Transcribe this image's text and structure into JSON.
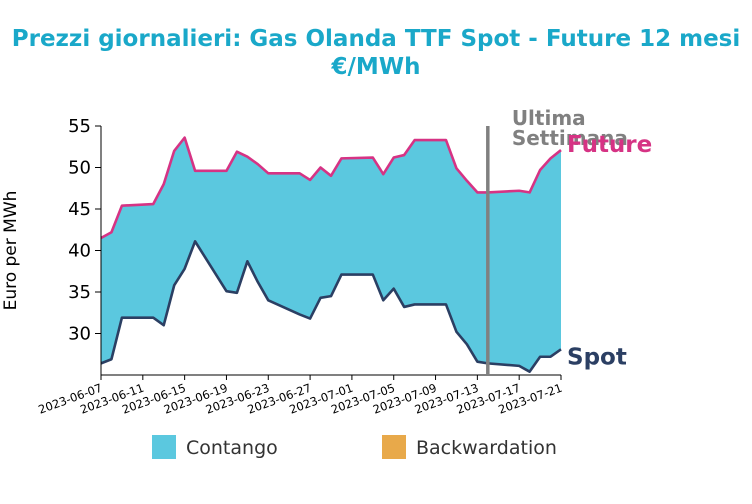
{
  "chart_data": {
    "type": "area",
    "title": "Prezzi giornalieri: Gas Olanda TTF Spot - Future 12 mesi",
    "subtitle": "€/MWh",
    "xlabel": "",
    "ylabel": "Euro per MWh",
    "ylim": [
      25,
      55
    ],
    "yticks": [
      30,
      35,
      40,
      45,
      50,
      55
    ],
    "x_ticks": [
      "2023-06-07",
      "2023-06-11",
      "2023-06-15",
      "2023-06-19",
      "2023-06-23",
      "2023-06-27",
      "2023-07-01",
      "2023-07-05",
      "2023-07-09",
      "2023-07-13",
      "2023-07-17",
      "2023-07-21"
    ],
    "dates": [
      "2023-06-07",
      "2023-06-08",
      "2023-06-09",
      "2023-06-12",
      "2023-06-13",
      "2023-06-14",
      "2023-06-15",
      "2023-06-16",
      "2023-06-19",
      "2023-06-20",
      "2023-06-21",
      "2023-06-22",
      "2023-06-23",
      "2023-06-26",
      "2023-06-27",
      "2023-06-28",
      "2023-06-29",
      "2023-06-30",
      "2023-07-03",
      "2023-07-04",
      "2023-07-05",
      "2023-07-06",
      "2023-07-07",
      "2023-07-10",
      "2023-07-11",
      "2023-07-12",
      "2023-07-13",
      "2023-07-14",
      "2023-07-17",
      "2023-07-18",
      "2023-07-19",
      "2023-07-20",
      "2023-07-21"
    ],
    "series": [
      {
        "name": "Future",
        "color": "#d63384",
        "values": [
          41.5,
          42.2,
          45.4,
          45.6,
          48.0,
          52.0,
          53.6,
          49.6,
          49.6,
          51.9,
          51.3,
          50.4,
          49.3,
          49.3,
          48.5,
          50.0,
          49.0,
          51.1,
          51.2,
          49.2,
          51.2,
          51.5,
          53.3,
          53.3,
          49.9,
          48.4,
          47.0,
          47.0,
          47.2,
          47.0,
          49.7,
          51.1,
          52.1
        ]
      },
      {
        "name": "Spot",
        "color": "#2b3f63",
        "values": [
          26.4,
          26.9,
          31.9,
          31.9,
          31.0,
          35.8,
          37.8,
          41.1,
          35.1,
          34.9,
          38.7,
          36.2,
          34.0,
          32.3,
          31.8,
          34.3,
          34.5,
          37.1,
          37.1,
          34.0,
          35.4,
          33.2,
          33.5,
          33.5,
          30.2,
          28.7,
          26.6,
          26.4,
          26.1,
          25.4,
          27.2,
          27.2,
          28.1
        ]
      }
    ],
    "fill_legend": [
      {
        "label": "Contango",
        "color": "#5bc8df"
      },
      {
        "label": "Backwardation",
        "color": "#e8a94a"
      }
    ],
    "marker": {
      "date": "2023-07-14",
      "label_line1": "Ultima",
      "label_line2": "Settimana",
      "color": "#808080"
    },
    "grid": false,
    "legend": "bottom"
  }
}
